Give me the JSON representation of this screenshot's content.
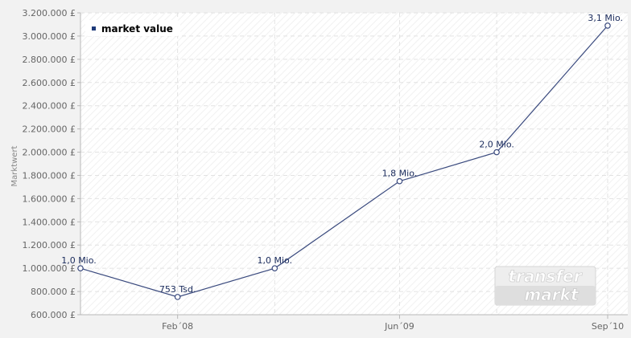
{
  "chart_data": {
    "type": "line",
    "ylabel": "Marktwert",
    "ylim": [
      600000,
      3200000
    ],
    "yticks": [
      600000,
      800000,
      1000000,
      1200000,
      1400000,
      1600000,
      1800000,
      2000000,
      2200000,
      2400000,
      2600000,
      2800000,
      3000000,
      3200000
    ],
    "ytick_labels": [
      "600.000 £",
      "800.000 £",
      "1.000.000 £",
      "1.200.000 £",
      "1.400.000 £",
      "1.600.000 £",
      "1.800.000 £",
      "2.000.000 £",
      "2.200.000 £",
      "2.400.000 £",
      "2.600.000 £",
      "2.800.000 £",
      "3.000.000 £",
      "3.200.000 £"
    ],
    "xlim": [
      "2007-07",
      "2010-09"
    ],
    "xticks": [
      "2008-02",
      "2009-06",
      "2010-09"
    ],
    "xtick_labels": [
      "Feb´08",
      "Jun´09",
      "Sep´10"
    ],
    "series": [
      {
        "name": "market value",
        "x": [
          "2007-07",
          "2008-02",
          "2008-09",
          "2009-06",
          "2010-01",
          "2010-09"
        ],
        "values": [
          1000000,
          753000,
          1000000,
          1750000,
          2000000,
          3090000
        ],
        "labels": [
          "1,0 Mio.",
          "753 Tsd.",
          "1,0 Mio.",
          "1,8 Mio.",
          "2,0 Mio.",
          "3,1 Mio."
        ]
      }
    ],
    "legend": "top-left",
    "grid": true,
    "colors": {
      "line": "#3a4a7e",
      "legend_marker": "#1f3a7a",
      "grid": "#e2e2e2"
    },
    "watermark": "transfermarkt"
  }
}
